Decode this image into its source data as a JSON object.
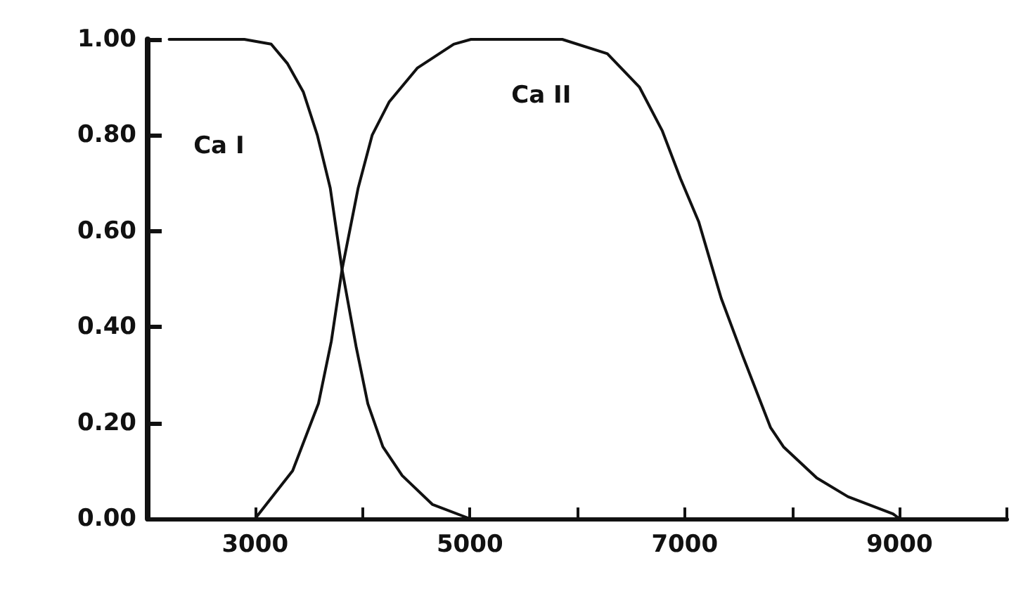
{
  "chart_data": {
    "type": "line",
    "marker": "none",
    "line_style": "solid",
    "grid": false,
    "xlim": [
      2000,
      10000
    ],
    "xticks": [
      3000,
      {
        "value": 4000,
        "label": null
      },
      5000,
      {
        "value": 6000,
        "label": null
      },
      7000,
      {
        "value": 8000,
        "label": null
      },
      9000,
      {
        "value": 10000,
        "label": null
      }
    ],
    "ylim": [
      0,
      1
    ],
    "yticks": [
      {
        "value": 0,
        "label": "0.00"
      },
      {
        "value": 0.2,
        "label": "0.20"
      },
      {
        "value": 0.4,
        "label": "0.40"
      },
      {
        "value": 0.6,
        "label": "0.60"
      },
      {
        "value": 0.8,
        "label": "0.80"
      },
      {
        "value": 1,
        "label": "1.00"
      }
    ],
    "series": [
      {
        "name": "Ca I",
        "color": "#111111",
        "x": [
          2200,
          2900,
          3150,
          3300,
          3450,
          3580,
          3700,
          3810,
          3940,
          4050,
          4190,
          4370,
          4650,
          5000
        ],
        "values": [
          1,
          1,
          0.99,
          0.95,
          0.89,
          0.8,
          0.69,
          0.52,
          0.36,
          0.24,
          0.15,
          0.09,
          0.03,
          0
        ]
      },
      {
        "name": "Ca II",
        "color": "#111111",
        "x": [
          3000,
          3350,
          3590,
          3710,
          3810,
          3960,
          4090,
          4250,
          4510,
          4850,
          5010,
          5860,
          6280,
          6580,
          6790,
          6960,
          7130,
          7340,
          7540,
          7800,
          7920,
          8230,
          8520,
          8940,
          9000
        ],
        "values": [
          0,
          0.1,
          0.24,
          0.37,
          0.52,
          0.69,
          0.8,
          0.87,
          0.94,
          0.99,
          1,
          1,
          0.97,
          0.9,
          0.81,
          0.71,
          0.62,
          0.46,
          0.34,
          0.19,
          0.15,
          0.085,
          0.046,
          0.01,
          0
        ]
      }
    ]
  }
}
